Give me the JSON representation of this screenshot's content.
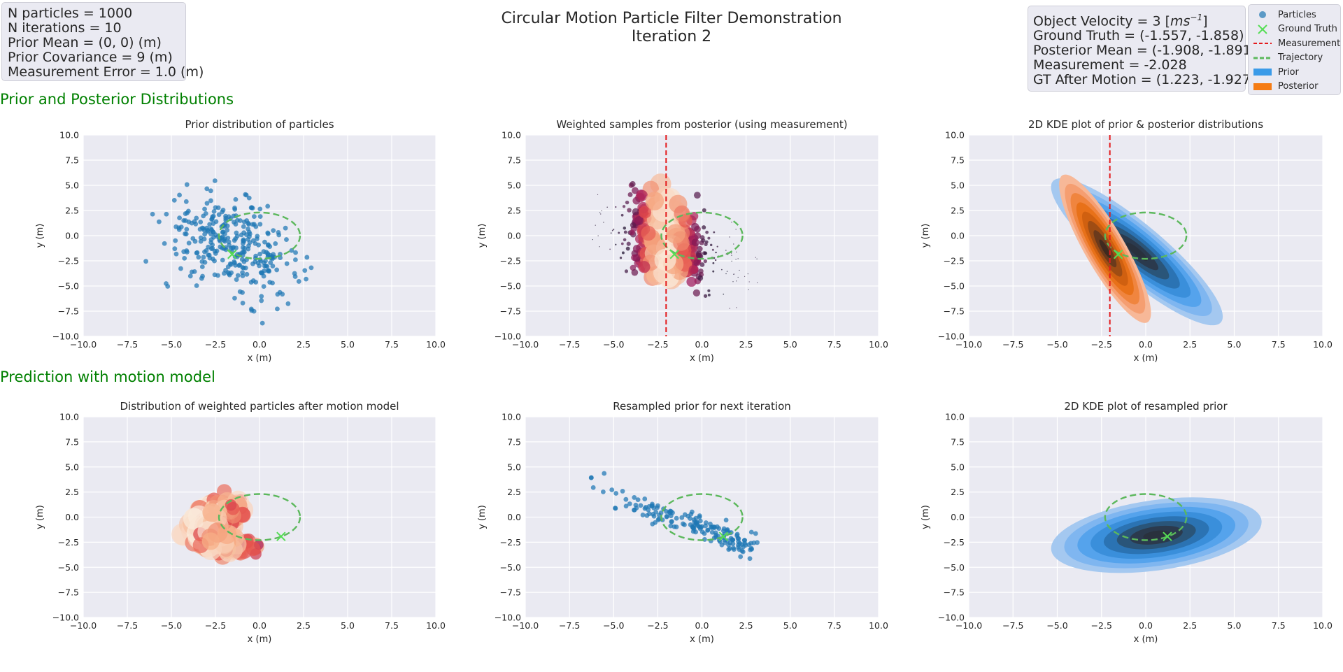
{
  "figure": {
    "title_line1": "Circular Motion Particle Filter Demonstration",
    "title_line2": "Iteration 2"
  },
  "info_left": [
    "N particles = 1000",
    "N iterations = 10",
    "Prior Mean = (0, 0) (m)",
    "Prior Covariance = 9 (m)",
    "Measurement Error = 1.0 (m)"
  ],
  "info_right": {
    "velocity_prefix": "Object Velocity = 3 [",
    "velocity_unit": "ms",
    "velocity_exp": "−1",
    "velocity_suffix": "]",
    "lines": [
      "Ground Truth = (-1.557, -1.858)",
      "Posterior Mean = (-1.908, -1.891)",
      "Measurement = -2.028",
      "GT After Motion = (1.223, -1.927)"
    ]
  },
  "legend": {
    "items": [
      {
        "label": "Particles",
        "icon": "dot-marker-icon",
        "color": "#1f77b4"
      },
      {
        "label": "Ground Truth",
        "icon": "x-marker-icon",
        "color": "#55dd55"
      },
      {
        "label": "Measurement",
        "icon": "red-dashed-line-icon",
        "color": "#e41a1c"
      },
      {
        "label": "Trajectory",
        "icon": "green-dashed-line-icon",
        "color": "#5cb85c"
      },
      {
        "label": "Prior",
        "icon": "blue-patch-icon",
        "color": "#3b9be8"
      },
      {
        "label": "Posterior",
        "icon": "orange-patch-icon",
        "color": "#f57c14"
      }
    ]
  },
  "sections": {
    "top": "Prior and Posterior Distributions",
    "bottom": "Prediction with motion model"
  },
  "colors": {
    "axes_bg": "#eaeaf2",
    "grid": "#ffffff",
    "particle_blue": "#1f77b4",
    "trajectory_green": "#5cb85c",
    "ground_truth_green": "#55dd55",
    "measurement_red": "#e41a1c",
    "section_green": "#008000"
  },
  "chart_data": [
    {
      "type": "scatter",
      "title": "Prior distribution of particles",
      "xlabel": "x (m)",
      "ylabel": "y (m)",
      "xlim": [
        -10,
        10
      ],
      "ylim": [
        -10,
        10
      ],
      "ticks": [
        "−10.0",
        "−7.5",
        "−5.0",
        "−2.5",
        "0.0",
        "2.5",
        "5.0",
        "7.5",
        "10.0"
      ],
      "trajectory": {
        "center": [
          0,
          0
        ],
        "radius_x": 2.3,
        "radius_y": 2.3
      },
      "ground_truth": [
        -1.557,
        -1.858
      ],
      "measurement_x": null,
      "particles_cloud": {
        "style": "prior",
        "center": [
          -1.5,
          -1.0
        ],
        "spread": [
          1.9,
          2.4
        ],
        "rho": -0.45
      }
    },
    {
      "type": "scatter",
      "title": "Weighted samples from posterior (using measurement)",
      "xlabel": "x (m)",
      "ylabel": "y (m)",
      "xlim": [
        -10,
        10
      ],
      "ylim": [
        -10,
        10
      ],
      "ticks": [
        "−10.0",
        "−7.5",
        "−5.0",
        "−2.5",
        "0.0",
        "2.5",
        "5.0",
        "7.5",
        "10.0"
      ],
      "trajectory": {
        "center": [
          0,
          0
        ],
        "radius_x": 2.3,
        "radius_y": 2.3
      },
      "ground_truth": [
        -1.557,
        -1.858
      ],
      "measurement_x": -2.028,
      "particles_cloud": {
        "style": "weighted",
        "center": [
          -1.5,
          -1.0
        ],
        "spread": [
          1.9,
          2.4
        ],
        "rho": -0.45,
        "measurement": -2.028
      }
    },
    {
      "type": "heatmap",
      "title": "2D KDE plot of prior & posterior distributions",
      "xlabel": "x (m)",
      "ylabel": "y (m)",
      "xlim": [
        -10,
        10
      ],
      "ylim": [
        -10,
        10
      ],
      "ticks": [
        "−10.0",
        "−7.5",
        "−5.0",
        "−2.5",
        "0.0",
        "2.5",
        "5.0",
        "7.5",
        "10.0"
      ],
      "trajectory": {
        "center": [
          0,
          0
        ],
        "radius_x": 2.3,
        "radius_y": 2.3
      },
      "ground_truth": [
        -1.557,
        -1.858
      ],
      "measurement_x": -2.028,
      "kde": [
        {
          "name": "Prior",
          "palette": "blue",
          "center": [
            -0.5,
            -1.6
          ],
          "rx": 6.2,
          "ry": 2.7,
          "angle": 40
        },
        {
          "name": "Posterior",
          "palette": "orange",
          "center": [
            -2.3,
            -1.3
          ],
          "rx": 4.8,
          "ry": 2.0,
          "angle": 60
        }
      ]
    },
    {
      "type": "scatter",
      "title": "Distribution of weighted particles after motion model",
      "xlabel": "x (m)",
      "ylabel": "y (m)",
      "xlim": [
        -10,
        10
      ],
      "ylim": [
        -10,
        10
      ],
      "ticks": [
        "−10.0",
        "−7.5",
        "−5.0",
        "−2.5",
        "0.0",
        "2.5",
        "5.0",
        "7.5",
        "10.0"
      ],
      "trajectory": {
        "center": [
          0,
          0
        ],
        "radius_x": 2.3,
        "radius_y": 2.3
      },
      "ground_truth": [
        1.223,
        -1.927
      ],
      "measurement_x": null,
      "particles_cloud": {
        "style": "motion",
        "center": [
          -0.5,
          -1.5
        ],
        "spread": [
          2.2,
          2.0
        ],
        "rho": -0.6
      }
    },
    {
      "type": "scatter",
      "title": "Resampled prior for next iteration",
      "xlabel": "x (m)",
      "ylabel": "y (m)",
      "xlim": [
        -10,
        10
      ],
      "ylim": [
        -10,
        10
      ],
      "ticks": [
        "−10.0",
        "−7.5",
        "−5.0",
        "−2.5",
        "0.0",
        "2.5",
        "5.0",
        "7.5",
        "10.0"
      ],
      "trajectory": {
        "center": [
          0,
          0
        ],
        "radius_x": 2.3,
        "radius_y": 2.3
      },
      "ground_truth": [
        1.223,
        -1.927
      ],
      "measurement_x": null,
      "particles_cloud": {
        "style": "resampled",
        "center": [
          0.5,
          -2.0
        ],
        "spread": [
          1.5,
          1.6
        ],
        "rho": -0.4
      }
    },
    {
      "type": "heatmap",
      "title": "2D KDE plot of resampled prior",
      "xlabel": "x (m)",
      "ylabel": "y (m)",
      "xlim": [
        -10,
        10
      ],
      "ylim": [
        -10,
        10
      ],
      "ticks": [
        "−10.0",
        "−7.5",
        "−5.0",
        "−2.5",
        "0.0",
        "2.5",
        "5.0",
        "7.5",
        "10.0"
      ],
      "trajectory": {
        "center": [
          0,
          0
        ],
        "radius_x": 2.3,
        "radius_y": 2.3
      },
      "ground_truth": [
        1.223,
        -1.927
      ],
      "measurement_x": null,
      "kde": [
        {
          "name": "Prior",
          "palette": "blue",
          "center": [
            0.6,
            -1.8
          ],
          "rx": 6.0,
          "ry": 3.5,
          "angle": -8
        }
      ]
    }
  ]
}
